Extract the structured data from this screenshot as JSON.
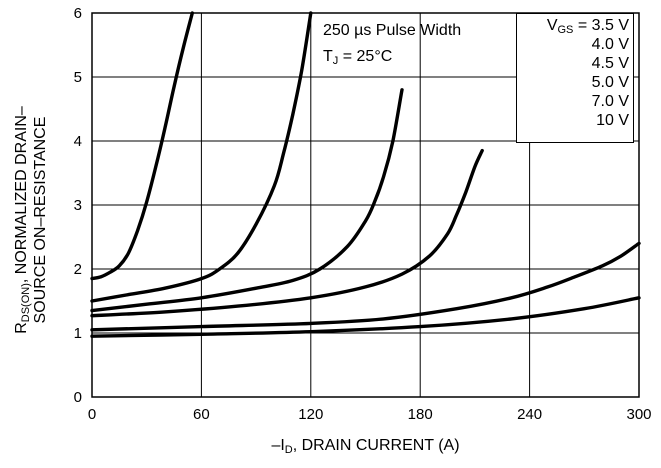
{
  "chart_data": {
    "type": "line",
    "xlabel_prefix": "–I",
    "xlabel_sub": "D",
    "xlabel_suffix": ", DRAIN CURRENT (A)",
    "ylabel_line1_prefix": "R",
    "ylabel_line1_sub": "DS(ON)",
    "ylabel_line1_suffix": ", NORMALIZED DRAIN–",
    "ylabel_line2": "SOURCE ON–RESISTANCE",
    "xlim": [
      0,
      300
    ],
    "ylim": [
      0,
      6
    ],
    "xticks": [
      "0",
      "60",
      "120",
      "180",
      "240",
      "300"
    ],
    "yticks": [
      "0",
      "1",
      "2",
      "3",
      "4",
      "5",
      "6"
    ],
    "grid": true,
    "annotation_line1": "250 µs Pulse Width",
    "annotation_line2_prefix": "T",
    "annotation_line2_sub": "J",
    "annotation_line2_suffix": " = 25°C",
    "legend_title_prefix": "V",
    "legend_title_sub": "GS",
    "legend_title_suffix": " = 3.5 V",
    "legend_entries": [
      "4.0 V",
      "4.5 V",
      "5.0 V",
      "7.0 V",
      "10 V"
    ],
    "series": [
      {
        "name": "V_GS = 3.5 V",
        "x": [
          0,
          5,
          10,
          15,
          20,
          25,
          30,
          35,
          40,
          45,
          50,
          55
        ],
        "y": [
          1.85,
          1.88,
          1.95,
          2.05,
          2.25,
          2.6,
          3.05,
          3.6,
          4.2,
          4.85,
          5.45,
          6.0
        ]
      },
      {
        "name": "4.0 V",
        "x": [
          0,
          20,
          40,
          60,
          70,
          80,
          90,
          100,
          105,
          110,
          115,
          120
        ],
        "y": [
          1.5,
          1.6,
          1.7,
          1.85,
          2.0,
          2.25,
          2.7,
          3.3,
          3.8,
          4.4,
          5.1,
          6.0
        ]
      },
      {
        "name": "4.5 V",
        "x": [
          0,
          30,
          60,
          90,
          110,
          125,
          140,
          150,
          155,
          160,
          165,
          170
        ],
        "y": [
          1.35,
          1.45,
          1.55,
          1.7,
          1.82,
          2.0,
          2.35,
          2.75,
          3.05,
          3.45,
          4.0,
          4.8
        ]
      },
      {
        "name": "5.0 V",
        "x": [
          0,
          40,
          80,
          120,
          150,
          170,
          185,
          195,
          200,
          205,
          210,
          214
        ],
        "y": [
          1.27,
          1.33,
          1.42,
          1.55,
          1.72,
          1.92,
          2.2,
          2.55,
          2.85,
          3.2,
          3.6,
          3.85
        ]
      },
      {
        "name": "7.0 V",
        "x": [
          0,
          60,
          120,
          160,
          200,
          230,
          250,
          265,
          280,
          290,
          300
        ],
        "y": [
          1.05,
          1.1,
          1.15,
          1.22,
          1.38,
          1.55,
          1.72,
          1.88,
          2.05,
          2.2,
          2.4
        ]
      },
      {
        "name": "10 V",
        "x": [
          0,
          60,
          120,
          180,
          230,
          270,
          300
        ],
        "y": [
          0.95,
          0.98,
          1.02,
          1.1,
          1.22,
          1.38,
          1.55
        ]
      }
    ]
  }
}
